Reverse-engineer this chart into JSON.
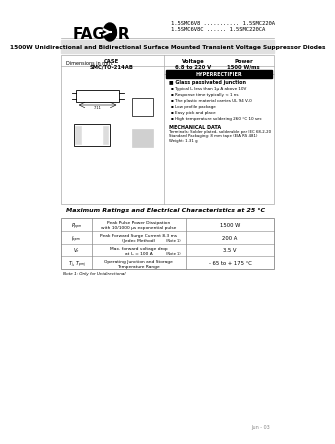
{
  "bg_color": "#ffffff",
  "header_line_color": "#cccccc",
  "logo_text": "FAGOR",
  "part_numbers_line1": "1.5SMC6V8 ........... 1.5SMC220A",
  "part_numbers_line2": "1.5SMC6V8C ...... 1.5SMC220CA",
  "title_bar_text": "1500W Unidirectional and Bidirectional Surface Mounted Transient Voltage Suppressor Diodes",
  "title_bar_bg": "#e0e0e0",
  "case_label": "CASE\nSMC/TO-214AB",
  "voltage_label": "Voltage\n6.8 to 220 V",
  "power_label": "Power\n1500 W/ms",
  "features_title": "Glass passivated junction",
  "features": [
    "Typical I₀ less than 1μ A above 10V",
    "Response time typically < 1 ns",
    "The plastic material carries UL 94 V-0",
    "Low profile package",
    "Easy pick and place",
    "High temperature soldering 260 °C 10 sec"
  ],
  "mech_title": "MECHANICAL DATA",
  "mech_text": "Terminals: Solder plated, solderable per IEC 68-2-20\nStandard Packaging: 8 mm tape (EIA RS 481)\nWeight: 1.31 g",
  "table_title": "Maximum Ratings and Electrical Characteristics at 25 °C",
  "table_rows": [
    {
      "symbol": "Pₚₚₘ",
      "description": "Peak Pulse Power Dissipation\nwith 10/1000 μs exponential pulse",
      "note": "",
      "value": "1500 W"
    },
    {
      "symbol": "Iₚₚₘ",
      "description": "Peak Forward Surge Current 8.3 ms\n(Jedec Method)",
      "note": "(Note 1)",
      "value": "200 A"
    },
    {
      "symbol": "Vₙ",
      "description": "Max. forward voltage drop\nat Iₙ = 100 A",
      "note": "(Note 1)",
      "value": "3.5 V"
    },
    {
      "symbol": "Tⱼ, Tₚₘⱼ",
      "description": "Operating Junction and Storage\nTemperature Range",
      "note": "",
      "value": "- 65 to + 175 °C"
    }
  ],
  "note_text": "Note 1: Only for Unidirectional",
  "date_text": "Jun - 03",
  "hyperrectifier_label": "HYPERRECTIFIER"
}
